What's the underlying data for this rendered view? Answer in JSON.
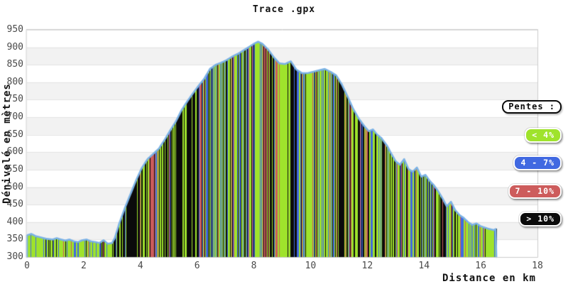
{
  "title": "Trace .gpx",
  "axes": {
    "y": {
      "label": "Dénivelé en mètres",
      "ticks": [
        "950",
        "900",
        "850",
        "800",
        "750",
        "700",
        "650",
        "600",
        "550",
        "500",
        "450",
        "400",
        "350",
        "300"
      ]
    },
    "x": {
      "label": "Distance en km",
      "ticks": [
        "0",
        "2",
        "4",
        "6",
        "8",
        "10",
        "12",
        "14",
        "16",
        "18"
      ]
    }
  },
  "legend": {
    "title": "Pentes :",
    "items": [
      {
        "label": "< 4%",
        "color": "#9fe32c"
      },
      {
        "label": "4 - 7%",
        "color": "#4169e1"
      },
      {
        "label": "7 - 10%",
        "color": "#cd5c5c"
      },
      {
        "label": "> 10%",
        "color": "#0b0b0b"
      }
    ]
  },
  "chart_data": {
    "type": "area",
    "title": "Trace .gpx",
    "xlabel": "Distance en km",
    "ylabel": "Dénivelé en mètres",
    "xlim": [
      0,
      18
    ],
    "ylim": [
      300,
      950
    ],
    "x_tick_step": 2,
    "y_tick_step": 50,
    "grid": "horizontal-bands",
    "band_color": "#f2f2f2",
    "gridline_color": "#e2e2e2",
    "border_color": "#cccccc",
    "line_color": "#7bb2e5",
    "legend_position": "right",
    "track_end_km": 16.55,
    "slope_classes": [
      {
        "label": "< 4%",
        "max_percent": 4,
        "color": "#9fe32c"
      },
      {
        "label": "4 - 7%",
        "max_percent": 7,
        "color": "#4169e1"
      },
      {
        "label": "7 - 10%",
        "max_percent": 10,
        "color": "#cd5c5c"
      },
      {
        "label": "> 10%",
        "max_percent": 99,
        "color": "#0b0b0b"
      }
    ],
    "profile_points": [
      [
        0.0,
        362
      ],
      [
        0.15,
        366
      ],
      [
        0.3,
        360
      ],
      [
        0.5,
        356
      ],
      [
        0.7,
        352
      ],
      [
        0.9,
        350
      ],
      [
        1.05,
        354
      ],
      [
        1.2,
        350
      ],
      [
        1.35,
        347
      ],
      [
        1.5,
        350
      ],
      [
        1.65,
        345
      ],
      [
        1.8,
        343
      ],
      [
        1.95,
        348
      ],
      [
        2.1,
        350
      ],
      [
        2.25,
        345
      ],
      [
        2.4,
        343
      ],
      [
        2.55,
        340
      ],
      [
        2.7,
        348
      ],
      [
        2.85,
        338
      ],
      [
        3.0,
        340
      ],
      [
        3.1,
        355
      ],
      [
        3.25,
        395
      ],
      [
        3.45,
        440
      ],
      [
        3.65,
        480
      ],
      [
        3.85,
        520
      ],
      [
        4.05,
        555
      ],
      [
        4.25,
        580
      ],
      [
        4.45,
        595
      ],
      [
        4.65,
        610
      ],
      [
        4.85,
        635
      ],
      [
        5.05,
        662
      ],
      [
        5.25,
        688
      ],
      [
        5.45,
        720
      ],
      [
        5.65,
        745
      ],
      [
        5.85,
        768
      ],
      [
        6.05,
        790
      ],
      [
        6.25,
        810
      ],
      [
        6.45,
        838
      ],
      [
        6.65,
        850
      ],
      [
        6.85,
        856
      ],
      [
        7.05,
        864
      ],
      [
        7.25,
        874
      ],
      [
        7.45,
        882
      ],
      [
        7.65,
        892
      ],
      [
        7.85,
        902
      ],
      [
        8.0,
        910
      ],
      [
        8.15,
        916
      ],
      [
        8.3,
        910
      ],
      [
        8.5,
        894
      ],
      [
        8.7,
        872
      ],
      [
        8.9,
        854
      ],
      [
        9.1,
        852
      ],
      [
        9.3,
        860
      ],
      [
        9.5,
        836
      ],
      [
        9.7,
        826
      ],
      [
        9.9,
        826
      ],
      [
        10.1,
        830
      ],
      [
        10.3,
        834
      ],
      [
        10.5,
        838
      ],
      [
        10.7,
        830
      ],
      [
        10.9,
        820
      ],
      [
        11.1,
        794
      ],
      [
        11.3,
        760
      ],
      [
        11.5,
        724
      ],
      [
        11.7,
        696
      ],
      [
        11.9,
        674
      ],
      [
        12.05,
        660
      ],
      [
        12.2,
        665
      ],
      [
        12.35,
        650
      ],
      [
        12.5,
        640
      ],
      [
        12.7,
        618
      ],
      [
        12.85,
        595
      ],
      [
        13.0,
        574
      ],
      [
        13.15,
        564
      ],
      [
        13.3,
        580
      ],
      [
        13.45,
        552
      ],
      [
        13.6,
        544
      ],
      [
        13.75,
        556
      ],
      [
        13.9,
        530
      ],
      [
        14.05,
        535
      ],
      [
        14.2,
        518
      ],
      [
        14.35,
        505
      ],
      [
        14.5,
        488
      ],
      [
        14.65,
        468
      ],
      [
        14.8,
        445
      ],
      [
        14.95,
        458
      ],
      [
        15.1,
        434
      ],
      [
        15.25,
        420
      ],
      [
        15.4,
        412
      ],
      [
        15.55,
        400
      ],
      [
        15.7,
        392
      ],
      [
        15.85,
        396
      ],
      [
        16.0,
        388
      ],
      [
        16.15,
        384
      ],
      [
        16.3,
        380
      ],
      [
        16.45,
        377
      ],
      [
        16.55,
        381
      ]
    ]
  }
}
